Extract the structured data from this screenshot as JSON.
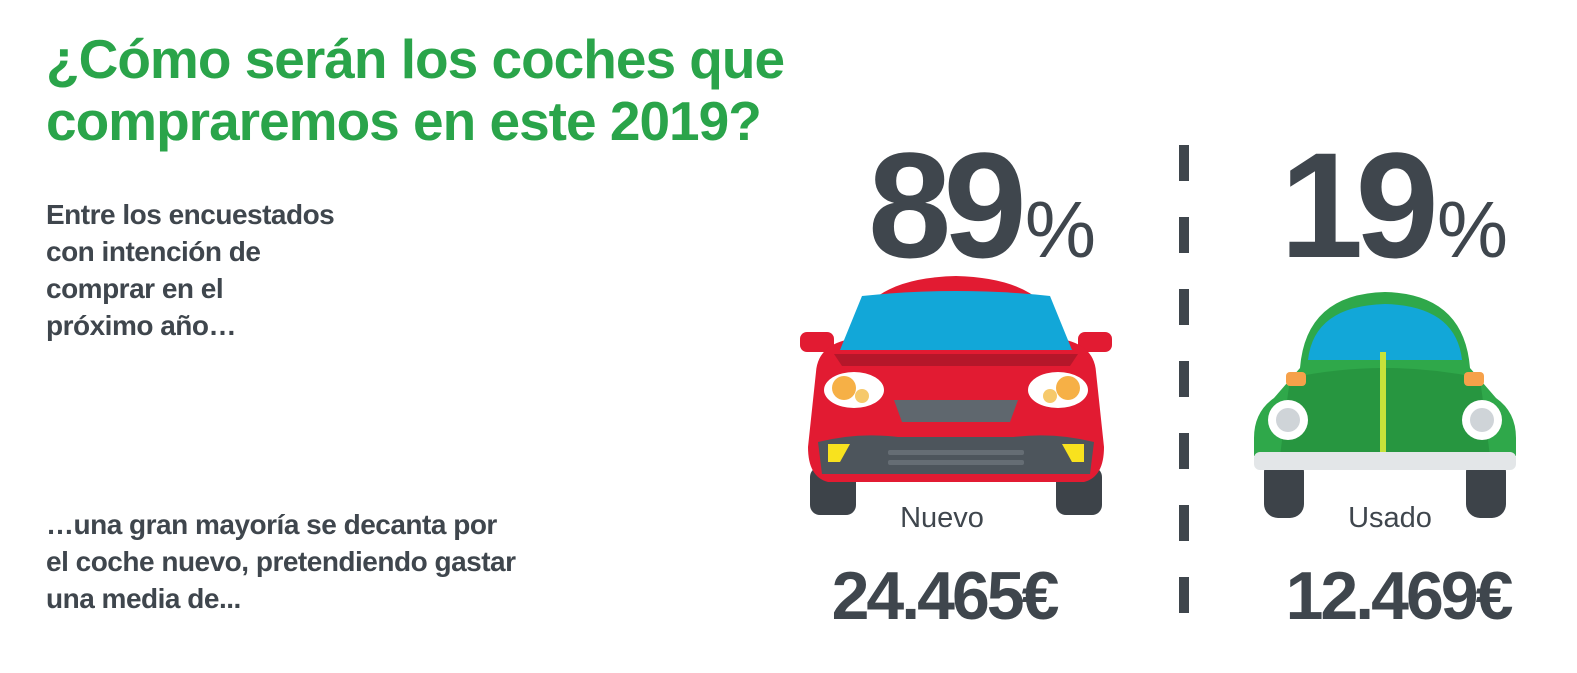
{
  "title": {
    "line1": "¿Cómo serán los coches que",
    "line2": "compraremos en este 2019?"
  },
  "intro": {
    "lines": [
      "Entre los encuestados",
      "con intención de",
      "comprar en el",
      "próximo año…"
    ]
  },
  "conclusion": {
    "lines": [
      "…una gran mayoría se decanta por",
      "el coche nuevo, pretendiendo gastar",
      "una media de..."
    ]
  },
  "new_car": {
    "percent": "89",
    "percent_symbol": "%",
    "label": "Nuevo",
    "price": "24.465€",
    "icon": "red-modern-car-icon",
    "color": "#e21b32"
  },
  "used_car": {
    "percent": "19",
    "percent_symbol": "%",
    "label": "Usado",
    "price": "12.469€",
    "icon": "green-beetle-car-icon",
    "color": "#2fa84a"
  },
  "colors": {
    "title": "#2aa44a",
    "text": "#3f464d",
    "windshield": "#12a7d8"
  }
}
